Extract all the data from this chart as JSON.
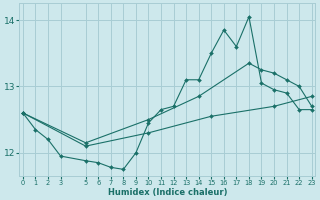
{
  "xlabel": "Humidex (Indice chaleur)",
  "bg_color": "#cde8ec",
  "grid_color": "#a8cdd4",
  "line_color": "#1a7068",
  "ylim": [
    11.65,
    14.25
  ],
  "yticks": [
    12,
    13,
    14
  ],
  "xticks": [
    0,
    1,
    2,
    3,
    5,
    6,
    7,
    8,
    9,
    10,
    11,
    12,
    13,
    14,
    15,
    16,
    17,
    18,
    19,
    20,
    21,
    22,
    23
  ],
  "lineA_x": [
    0,
    1,
    2,
    3,
    5,
    6,
    7,
    8,
    9,
    10,
    11,
    12,
    13,
    14,
    15,
    16,
    17,
    18,
    19,
    20,
    21,
    22,
    23
  ],
  "lineA_y": [
    12.6,
    12.35,
    12.2,
    11.95,
    11.88,
    11.85,
    11.78,
    11.75,
    12.0,
    12.45,
    12.65,
    12.7,
    13.1,
    13.1,
    13.5,
    13.85,
    13.6,
    14.05,
    13.05,
    12.95,
    12.9,
    12.65,
    12.65
  ],
  "lineB_x": [
    0,
    5,
    10,
    14,
    18,
    19,
    20,
    21,
    22,
    23
  ],
  "lineB_y": [
    12.6,
    12.15,
    12.5,
    12.85,
    13.35,
    13.25,
    13.2,
    13.1,
    13.0,
    12.7
  ],
  "lineC_x": [
    0,
    5,
    10,
    15,
    20,
    23
  ],
  "lineC_y": [
    12.6,
    12.1,
    12.3,
    12.55,
    12.7,
    12.85
  ]
}
